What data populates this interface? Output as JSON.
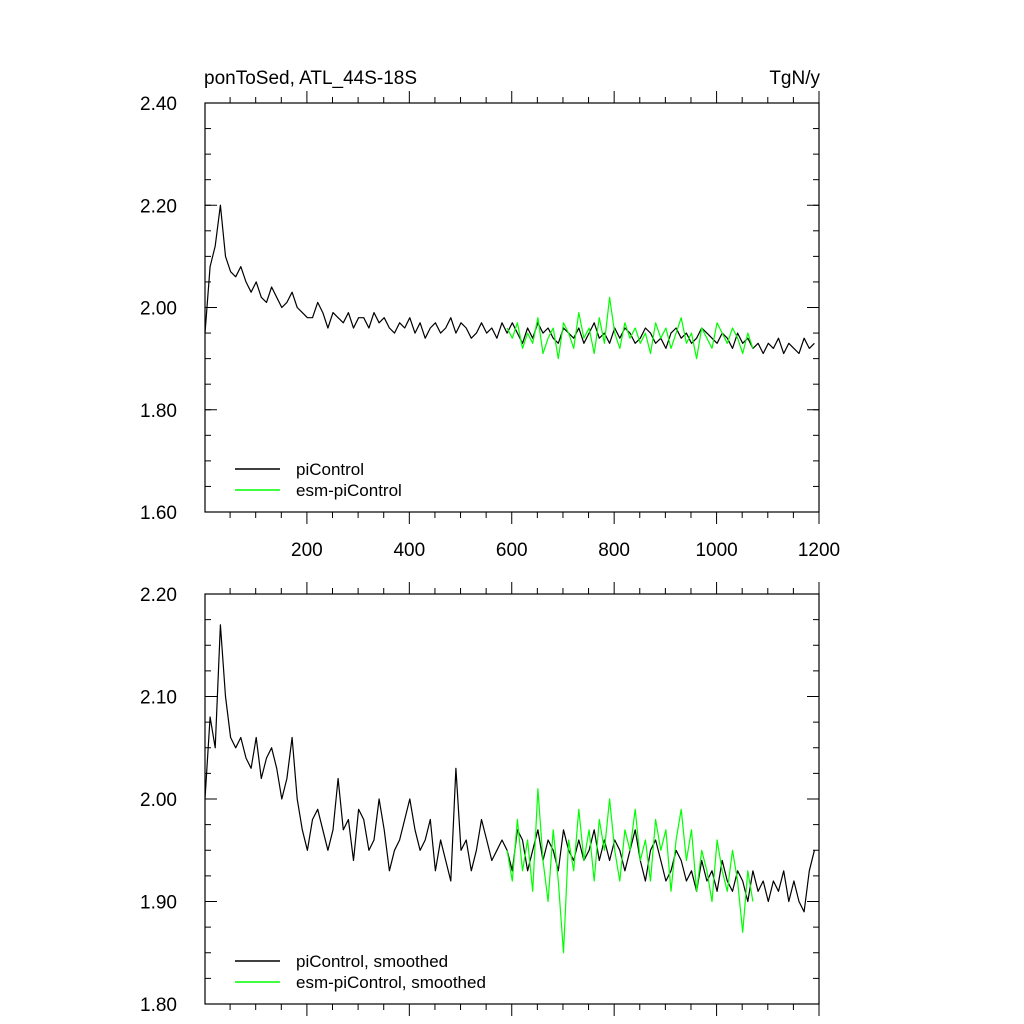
{
  "chart_data": [
    {
      "type": "line",
      "title": "ponToSed, ATL_44S-18S",
      "units": "TgN/y",
      "xlabel": "",
      "ylabel": "",
      "xlim": [
        1,
        1200
      ],
      "ylim": [
        1.6,
        2.4
      ],
      "xticks": [
        200,
        400,
        600,
        800,
        1000,
        1200
      ],
      "xtick_labels": [
        "200",
        "400",
        "600",
        "800",
        "1000",
        "1200"
      ],
      "yticks": [
        1.6,
        1.8,
        2.0,
        2.2,
        2.4
      ],
      "ytick_labels": [
        "1.60",
        "1.80",
        "2.00",
        "2.20",
        "2.40"
      ],
      "legend": "bottom-left",
      "series": [
        {
          "name": "piControl",
          "color": "#000000",
          "x_start": 1,
          "x_step": 10,
          "values": [
            1.95,
            2.08,
            2.12,
            2.2,
            2.1,
            2.07,
            2.06,
            2.08,
            2.05,
            2.03,
            2.05,
            2.02,
            2.01,
            2.04,
            2.02,
            2.0,
            2.01,
            2.03,
            2.0,
            1.99,
            1.98,
            1.98,
            2.01,
            1.99,
            1.96,
            1.99,
            1.98,
            1.97,
            1.99,
            1.96,
            1.98,
            1.98,
            1.96,
            1.99,
            1.97,
            1.98,
            1.96,
            1.95,
            1.97,
            1.96,
            1.98,
            1.95,
            1.97,
            1.94,
            1.96,
            1.97,
            1.95,
            1.96,
            1.98,
            1.95,
            1.97,
            1.96,
            1.94,
            1.95,
            1.97,
            1.95,
            1.96,
            1.94,
            1.97,
            1.95,
            1.97,
            1.95,
            1.93,
            1.96,
            1.94,
            1.97,
            1.95,
            1.96,
            1.94,
            1.93,
            1.96,
            1.95,
            1.94,
            1.96,
            1.93,
            1.95,
            1.97,
            1.94,
            1.95,
            1.93,
            1.96,
            1.94,
            1.96,
            1.95,
            1.93,
            1.94,
            1.96,
            1.95,
            1.93,
            1.94,
            1.92,
            1.95,
            1.96,
            1.94,
            1.95,
            1.93,
            1.94,
            1.96,
            1.95,
            1.94,
            1.93,
            1.95,
            1.94,
            1.92,
            1.95,
            1.93,
            1.94,
            1.92,
            1.93,
            1.91,
            1.93,
            1.92,
            1.94,
            1.91,
            1.93,
            1.92,
            1.91,
            1.94,
            1.92,
            1.93
          ]
        },
        {
          "name": "esm-piControl",
          "color": "#00ff00",
          "x_start": 591,
          "x_step": 10,
          "values": [
            1.96,
            1.94,
            1.97,
            1.92,
            1.95,
            1.93,
            1.98,
            1.91,
            1.94,
            1.96,
            1.9,
            1.97,
            1.95,
            1.92,
            1.99,
            1.94,
            1.96,
            1.91,
            1.98,
            1.93,
            2.02,
            1.95,
            1.92,
            1.97,
            1.94,
            1.96,
            1.93,
            1.95,
            1.91,
            1.97,
            1.94,
            1.96,
            1.92,
            1.95,
            1.98,
            1.93,
            1.95,
            1.9,
            1.96,
            1.94,
            1.92,
            1.97,
            1.95,
            1.93,
            1.96,
            1.94,
            1.91,
            1.95,
            1.92
          ]
        }
      ]
    },
    {
      "type": "line",
      "title": "",
      "xlabel": "",
      "ylabel": "",
      "xlim": [
        1,
        1200
      ],
      "ylim": [
        1.8,
        2.2
      ],
      "xticks": [
        200,
        400,
        600,
        800,
        1000,
        1200
      ],
      "xtick_labels": [],
      "yticks": [
        1.8,
        1.9,
        2.0,
        2.1,
        2.2
      ],
      "ytick_labels": [
        "1.80",
        "1.90",
        "2.00",
        "2.10",
        "2.20"
      ],
      "legend": "bottom-left",
      "series": [
        {
          "name": "piControl, smoothed",
          "color": "#000000",
          "x_start": 1,
          "x_step": 10,
          "values": [
            2.0,
            2.08,
            2.05,
            2.17,
            2.1,
            2.06,
            2.05,
            2.06,
            2.04,
            2.03,
            2.06,
            2.02,
            2.04,
            2.05,
            2.03,
            2.0,
            2.02,
            2.06,
            2.0,
            1.97,
            1.95,
            1.98,
            1.99,
            1.97,
            1.95,
            1.97,
            2.02,
            1.97,
            1.98,
            1.94,
            1.99,
            1.98,
            1.95,
            1.96,
            2.0,
            1.97,
            1.93,
            1.95,
            1.96,
            1.98,
            2.0,
            1.97,
            1.95,
            1.96,
            1.98,
            1.93,
            1.96,
            1.94,
            1.92,
            2.03,
            1.95,
            1.96,
            1.93,
            1.95,
            1.98,
            1.96,
            1.94,
            1.95,
            1.96,
            1.95,
            1.93,
            1.97,
            1.96,
            1.93,
            1.95,
            1.97,
            1.94,
            1.96,
            1.95,
            1.93,
            1.97,
            1.95,
            1.94,
            1.96,
            1.94,
            1.95,
            1.97,
            1.94,
            1.96,
            1.94,
            1.96,
            1.95,
            1.93,
            1.95,
            1.97,
            1.94,
            1.92,
            1.95,
            1.96,
            1.94,
            1.92,
            1.93,
            1.95,
            1.94,
            1.92,
            1.93,
            1.91,
            1.94,
            1.92,
            1.93,
            1.91,
            1.94,
            1.92,
            1.91,
            1.93,
            1.92,
            1.9,
            1.93,
            1.91,
            1.92,
            1.9,
            1.92,
            1.91,
            1.93,
            1.9,
            1.92,
            1.9,
            1.89,
            1.93,
            1.95
          ]
        },
        {
          "name": "esm-piControl, smoothed",
          "color": "#00ff00",
          "x_start": 591,
          "x_step": 10,
          "values": [
            1.95,
            1.92,
            1.98,
            1.93,
            1.96,
            1.91,
            2.01,
            1.94,
            1.9,
            1.97,
            1.92,
            1.85,
            1.96,
            1.93,
            1.99,
            1.94,
            1.97,
            1.92,
            1.98,
            1.95,
            2.0,
            1.95,
            1.92,
            1.97,
            1.95,
            1.99,
            1.94,
            1.96,
            1.92,
            1.98,
            1.95,
            1.97,
            1.91,
            1.96,
            1.99,
            1.94,
            1.97,
            1.91,
            1.95,
            1.93,
            1.9,
            1.96,
            1.93,
            1.91,
            1.95,
            1.92,
            1.87,
            1.93,
            1.9
          ]
        }
      ]
    }
  ]
}
